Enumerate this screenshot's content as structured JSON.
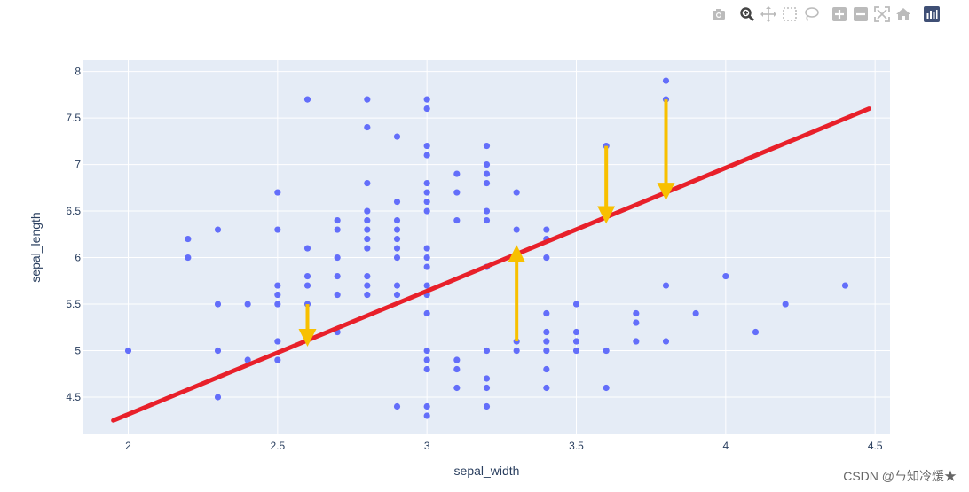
{
  "modebar": {
    "buttons": [
      {
        "icon": "camera-icon",
        "name": "download-png-button"
      },
      {
        "icon": "zoom-icon",
        "name": "zoom-button"
      },
      {
        "icon": "pan-icon",
        "name": "pan-button"
      },
      {
        "icon": "box-select-icon",
        "name": "box-select-button"
      },
      {
        "icon": "lasso-select-icon",
        "name": "lasso-select-button"
      },
      {
        "icon": "zoom-in-icon",
        "name": "zoom-in-button"
      },
      {
        "icon": "zoom-out-icon",
        "name": "zoom-out-button"
      },
      {
        "icon": "autoscale-icon",
        "name": "autoscale-button"
      },
      {
        "icon": "reset-axes-icon",
        "name": "reset-axes-button"
      },
      {
        "icon": "plotly-logo-icon",
        "name": "plotly-logo-button"
      }
    ],
    "active_button": "zoom-button",
    "icon_color": "#bbbbbb",
    "active_color": "#444444",
    "logo_color": "#3f4f75"
  },
  "chart_data": {
    "type": "scatter",
    "xlabel": "sepal_width",
    "ylabel": "sepal_length",
    "xlim": [
      1.85,
      4.55
    ],
    "ylim": [
      4.1,
      8.12
    ],
    "xticks": [
      2,
      2.5,
      3,
      3.5,
      4,
      4.5
    ],
    "yticks": [
      4.5,
      5,
      5.5,
      6,
      6.5,
      7,
      7.5,
      8
    ],
    "grid": true,
    "plot_bgcolor": "#e5ecf6",
    "points": [
      [
        2.0,
        5.0
      ],
      [
        2.2,
        6.2
      ],
      [
        2.2,
        6.0
      ],
      [
        2.3,
        6.3
      ],
      [
        2.3,
        5.5
      ],
      [
        2.3,
        5.0
      ],
      [
        2.3,
        4.5
      ],
      [
        2.4,
        5.5
      ],
      [
        2.4,
        4.9
      ],
      [
        2.5,
        6.7
      ],
      [
        2.5,
        6.3
      ],
      [
        2.5,
        5.7
      ],
      [
        2.5,
        5.6
      ],
      [
        2.5,
        5.5
      ],
      [
        2.5,
        5.1
      ],
      [
        2.5,
        4.9
      ],
      [
        2.6,
        7.7
      ],
      [
        2.6,
        6.1
      ],
      [
        2.6,
        5.8
      ],
      [
        2.6,
        5.7
      ],
      [
        2.6,
        5.5
      ],
      [
        2.7,
        6.4
      ],
      [
        2.7,
        6.3
      ],
      [
        2.7,
        6.0
      ],
      [
        2.7,
        5.8
      ],
      [
        2.7,
        5.6
      ],
      [
        2.7,
        5.2
      ],
      [
        2.8,
        7.7
      ],
      [
        2.8,
        7.4
      ],
      [
        2.8,
        6.8
      ],
      [
        2.8,
        6.5
      ],
      [
        2.8,
        6.4
      ],
      [
        2.8,
        6.3
      ],
      [
        2.8,
        6.2
      ],
      [
        2.8,
        6.1
      ],
      [
        2.8,
        5.8
      ],
      [
        2.8,
        5.7
      ],
      [
        2.8,
        5.6
      ],
      [
        2.9,
        7.3
      ],
      [
        2.9,
        6.6
      ],
      [
        2.9,
        6.4
      ],
      [
        2.9,
        6.3
      ],
      [
        2.9,
        6.2
      ],
      [
        2.9,
        6.1
      ],
      [
        2.9,
        6.0
      ],
      [
        2.9,
        5.7
      ],
      [
        2.9,
        5.6
      ],
      [
        2.9,
        4.4
      ],
      [
        3.0,
        7.7
      ],
      [
        3.0,
        7.6
      ],
      [
        3.0,
        7.2
      ],
      [
        3.0,
        7.1
      ],
      [
        3.0,
        6.8
      ],
      [
        3.0,
        6.7
      ],
      [
        3.0,
        6.6
      ],
      [
        3.0,
        6.5
      ],
      [
        3.0,
        6.1
      ],
      [
        3.0,
        6.0
      ],
      [
        3.0,
        5.9
      ],
      [
        3.0,
        5.7
      ],
      [
        3.0,
        5.6
      ],
      [
        3.0,
        5.4
      ],
      [
        3.0,
        5.0
      ],
      [
        3.0,
        4.9
      ],
      [
        3.0,
        4.8
      ],
      [
        3.0,
        4.4
      ],
      [
        3.0,
        4.3
      ],
      [
        3.1,
        6.9
      ],
      [
        3.1,
        6.7
      ],
      [
        3.1,
        6.4
      ],
      [
        3.1,
        4.9
      ],
      [
        3.1,
        4.8
      ],
      [
        3.1,
        4.6
      ],
      [
        3.2,
        7.2
      ],
      [
        3.2,
        7.0
      ],
      [
        3.2,
        6.9
      ],
      [
        3.2,
        6.8
      ],
      [
        3.2,
        6.5
      ],
      [
        3.2,
        6.4
      ],
      [
        3.2,
        5.9
      ],
      [
        3.2,
        5.0
      ],
      [
        3.2,
        4.7
      ],
      [
        3.2,
        4.6
      ],
      [
        3.2,
        4.4
      ],
      [
        3.3,
        6.7
      ],
      [
        3.3,
        6.3
      ],
      [
        3.3,
        5.1
      ],
      [
        3.3,
        5.0
      ],
      [
        3.4,
        6.3
      ],
      [
        3.4,
        6.2
      ],
      [
        3.4,
        6.0
      ],
      [
        3.4,
        5.4
      ],
      [
        3.4,
        5.2
      ],
      [
        3.4,
        5.1
      ],
      [
        3.4,
        5.0
      ],
      [
        3.4,
        4.8
      ],
      [
        3.4,
        4.6
      ],
      [
        3.5,
        5.5
      ],
      [
        3.5,
        5.2
      ],
      [
        3.5,
        5.1
      ],
      [
        3.5,
        5.0
      ],
      [
        3.6,
        7.2
      ],
      [
        3.6,
        5.0
      ],
      [
        3.6,
        4.6
      ],
      [
        3.7,
        5.4
      ],
      [
        3.7,
        5.3
      ],
      [
        3.7,
        5.1
      ],
      [
        3.8,
        7.9
      ],
      [
        3.8,
        7.7
      ],
      [
        3.8,
        5.7
      ],
      [
        3.8,
        5.1
      ],
      [
        3.9,
        5.4
      ],
      [
        4.0,
        5.8
      ],
      [
        4.1,
        5.2
      ],
      [
        4.2,
        5.5
      ],
      [
        4.4,
        5.7
      ]
    ],
    "marker_color": "#636efa",
    "fit_line": {
      "x": [
        1.95,
        4.48
      ],
      "y": [
        4.25,
        7.6
      ],
      "color": "#e8202a"
    },
    "arrows": [
      {
        "x": 2.6,
        "from": 5.5,
        "to": 5.15
      },
      {
        "x": 3.3,
        "from": 5.1,
        "to": 6.03
      },
      {
        "x": 3.6,
        "from": 7.2,
        "to": 6.47
      },
      {
        "x": 3.8,
        "from": 7.7,
        "to": 6.72
      }
    ],
    "arrow_color": "#f8c000"
  },
  "watermark": "CSDN @ㄣ知冷煖★"
}
